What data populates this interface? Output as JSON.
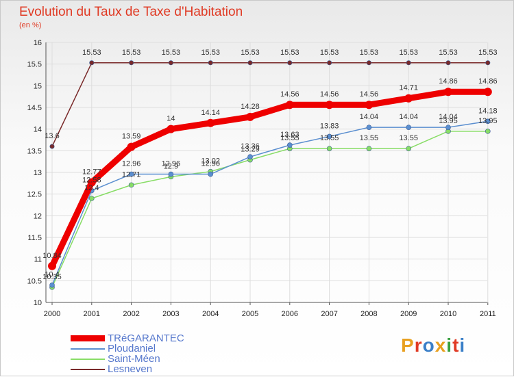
{
  "title": "Evolution du Taux de Taxe d'Habitation",
  "subtitle": "(en %)",
  "logo": {
    "text": "Proxiti",
    "colors": [
      "#e8a020",
      "#e03a24",
      "#3a7fc8",
      "#e8a020",
      "#3aa040",
      "#e03a24",
      "#3a7fc8"
    ]
  },
  "chart_data": {
    "type": "line",
    "x": [
      "2000",
      "2001",
      "2002",
      "2003",
      "2004",
      "2005",
      "2006",
      "2007",
      "2008",
      "2009",
      "2010",
      "2011"
    ],
    "ylim": [
      10,
      16
    ],
    "yticks": [
      "10",
      "10.5",
      "11",
      "11.5",
      "12",
      "12.5",
      "13",
      "13.5",
      "14",
      "14.5",
      "15",
      "15.5",
      "16"
    ],
    "grid": true,
    "legend_position": "bottom-left",
    "series": [
      {
        "name": "TRéGARANTEC",
        "color": "#ee0000",
        "values": [
          10.84,
          12.77,
          13.59,
          14,
          14.14,
          14.28,
          14.56,
          14.56,
          14.56,
          14.71,
          14.86,
          14.86
        ],
        "labels": [
          "10.84",
          "12.77",
          "13.59",
          "14",
          "14.14",
          "14.28",
          "14.56",
          "14.56",
          "14.56",
          "14.71",
          "14.86",
          "14.86"
        ]
      },
      {
        "name": "Ploudaniel",
        "color": "#5b8fd0",
        "values": [
          10.4,
          12.58,
          12.96,
          12.96,
          12.96,
          13.36,
          13.63,
          13.83,
          14.04,
          14.04,
          14.04,
          14.18
        ],
        "labels": [
          "10.4",
          "12.58",
          "12.96",
          "12.96",
          "12.96",
          "13.36",
          "13.63",
          "13.83",
          "14.04",
          "14.04",
          "14.04",
          "14.18"
        ]
      },
      {
        "name": "Saint-Méen",
        "color": "#88dd66",
        "values": [
          10.35,
          12.4,
          12.71,
          12.9,
          13.02,
          13.29,
          13.55,
          13.55,
          13.55,
          13.55,
          13.95,
          13.95
        ],
        "labels": [
          "10.35",
          "12.4",
          "12.71",
          "12.9",
          "13.02",
          "13.29",
          "13.55",
          "13.55",
          "13.55",
          "13.55",
          "13.95",
          "13.95"
        ]
      },
      {
        "name": "Lesneven",
        "color": "#7a2a2a",
        "values": [
          13.6,
          15.53,
          15.53,
          15.53,
          15.53,
          15.53,
          15.53,
          15.53,
          15.53,
          15.53,
          15.53,
          15.53
        ],
        "labels": [
          "13.6",
          "15.53",
          "15.53",
          "15.53",
          "15.53",
          "15.53",
          "15.53",
          "15.53",
          "15.53",
          "15.53",
          "15.53",
          "15.53"
        ]
      }
    ]
  }
}
